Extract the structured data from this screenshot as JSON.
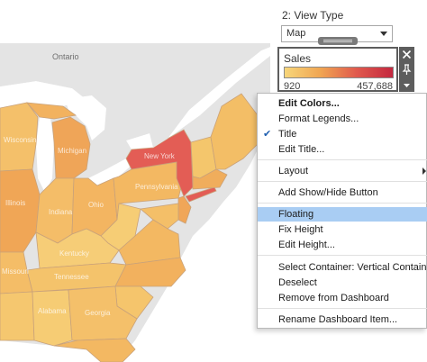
{
  "view_type": {
    "title": "2: View Type",
    "selected": "Map"
  },
  "map": {
    "place_labels": {
      "ontario": "Ontario",
      "pennsylvania": "Pennsylvania",
      "ohio": "Ohio",
      "kentucky": "Kentucky",
      "tennessee": "Tennessee",
      "illinois": "Illinois",
      "indiana": "Indiana",
      "michigan": "Michigan",
      "wisconsin": "Wisconsin",
      "georgia": "Georgia",
      "alabama": "Alabama",
      "missouri": "Missouri",
      "new_york": "New York"
    },
    "colors": {
      "water": "#ffffff",
      "land": "#e4e4e4",
      "low": "#f7d67a",
      "high": "#c4283f"
    }
  },
  "legend": {
    "title": "Sales",
    "min_label": "920",
    "max_label": "457,688",
    "gradient_colors": [
      "#f7d67a",
      "#f0a552",
      "#e0594d",
      "#c4283f"
    ]
  },
  "toolbar": {
    "remove_icon": "close-icon",
    "pin_icon": "pin-icon",
    "more_icon": "dropdown-arrow-icon"
  },
  "context_menu": {
    "edit_colors": "Edit Colors...",
    "format_legends": "Format Legends...",
    "title": "Title",
    "title_checked": true,
    "edit_title": "Edit Title...",
    "layout": "Layout",
    "add_show_hide": "Add Show/Hide Button",
    "floating": "Floating",
    "fix_height": "Fix Height",
    "edit_height": "Edit Height...",
    "select_container": "Select Container: Vertical Container",
    "deselect": "Deselect",
    "remove_from_dashboard": "Remove from Dashboard",
    "rename_item": "Rename Dashboard Item..."
  }
}
